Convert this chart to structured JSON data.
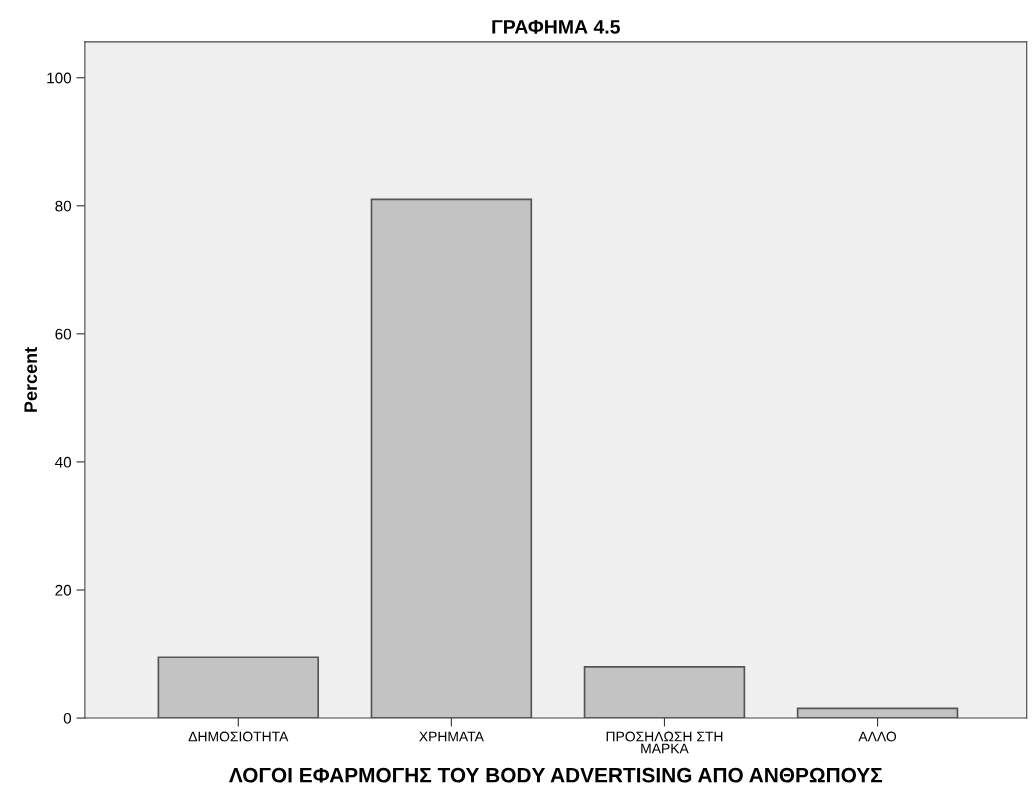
{
  "chart_data": {
    "type": "bar",
    "title": "ΓΡΑΦΗΜΑ 4.5",
    "xlabel": "ΛΟΓΟΙ ΕΦΑΡΜΟΓΗΣ ΤΟΥ BODY ADVERTISING ΑΠΟ ΑΝΘΡΩΠΟΥΣ",
    "ylabel": "Percent",
    "categories": [
      "ΔΗΜΟΣΙΟΤΗΤΑ",
      "ΧΡΗΜΑΤΑ",
      "ΠΡΟΣΗΛΩΣΗ ΣΤΗ\nΜΑΡΚΑ",
      "ΑΛΛΟ"
    ],
    "values": [
      9.5,
      81,
      8,
      1.5
    ],
    "color": "#c3c3c3",
    "ylim": [
      0,
      105.6
    ],
    "yticks": [
      0,
      20,
      40,
      60,
      80,
      100
    ],
    "grid": false
  }
}
